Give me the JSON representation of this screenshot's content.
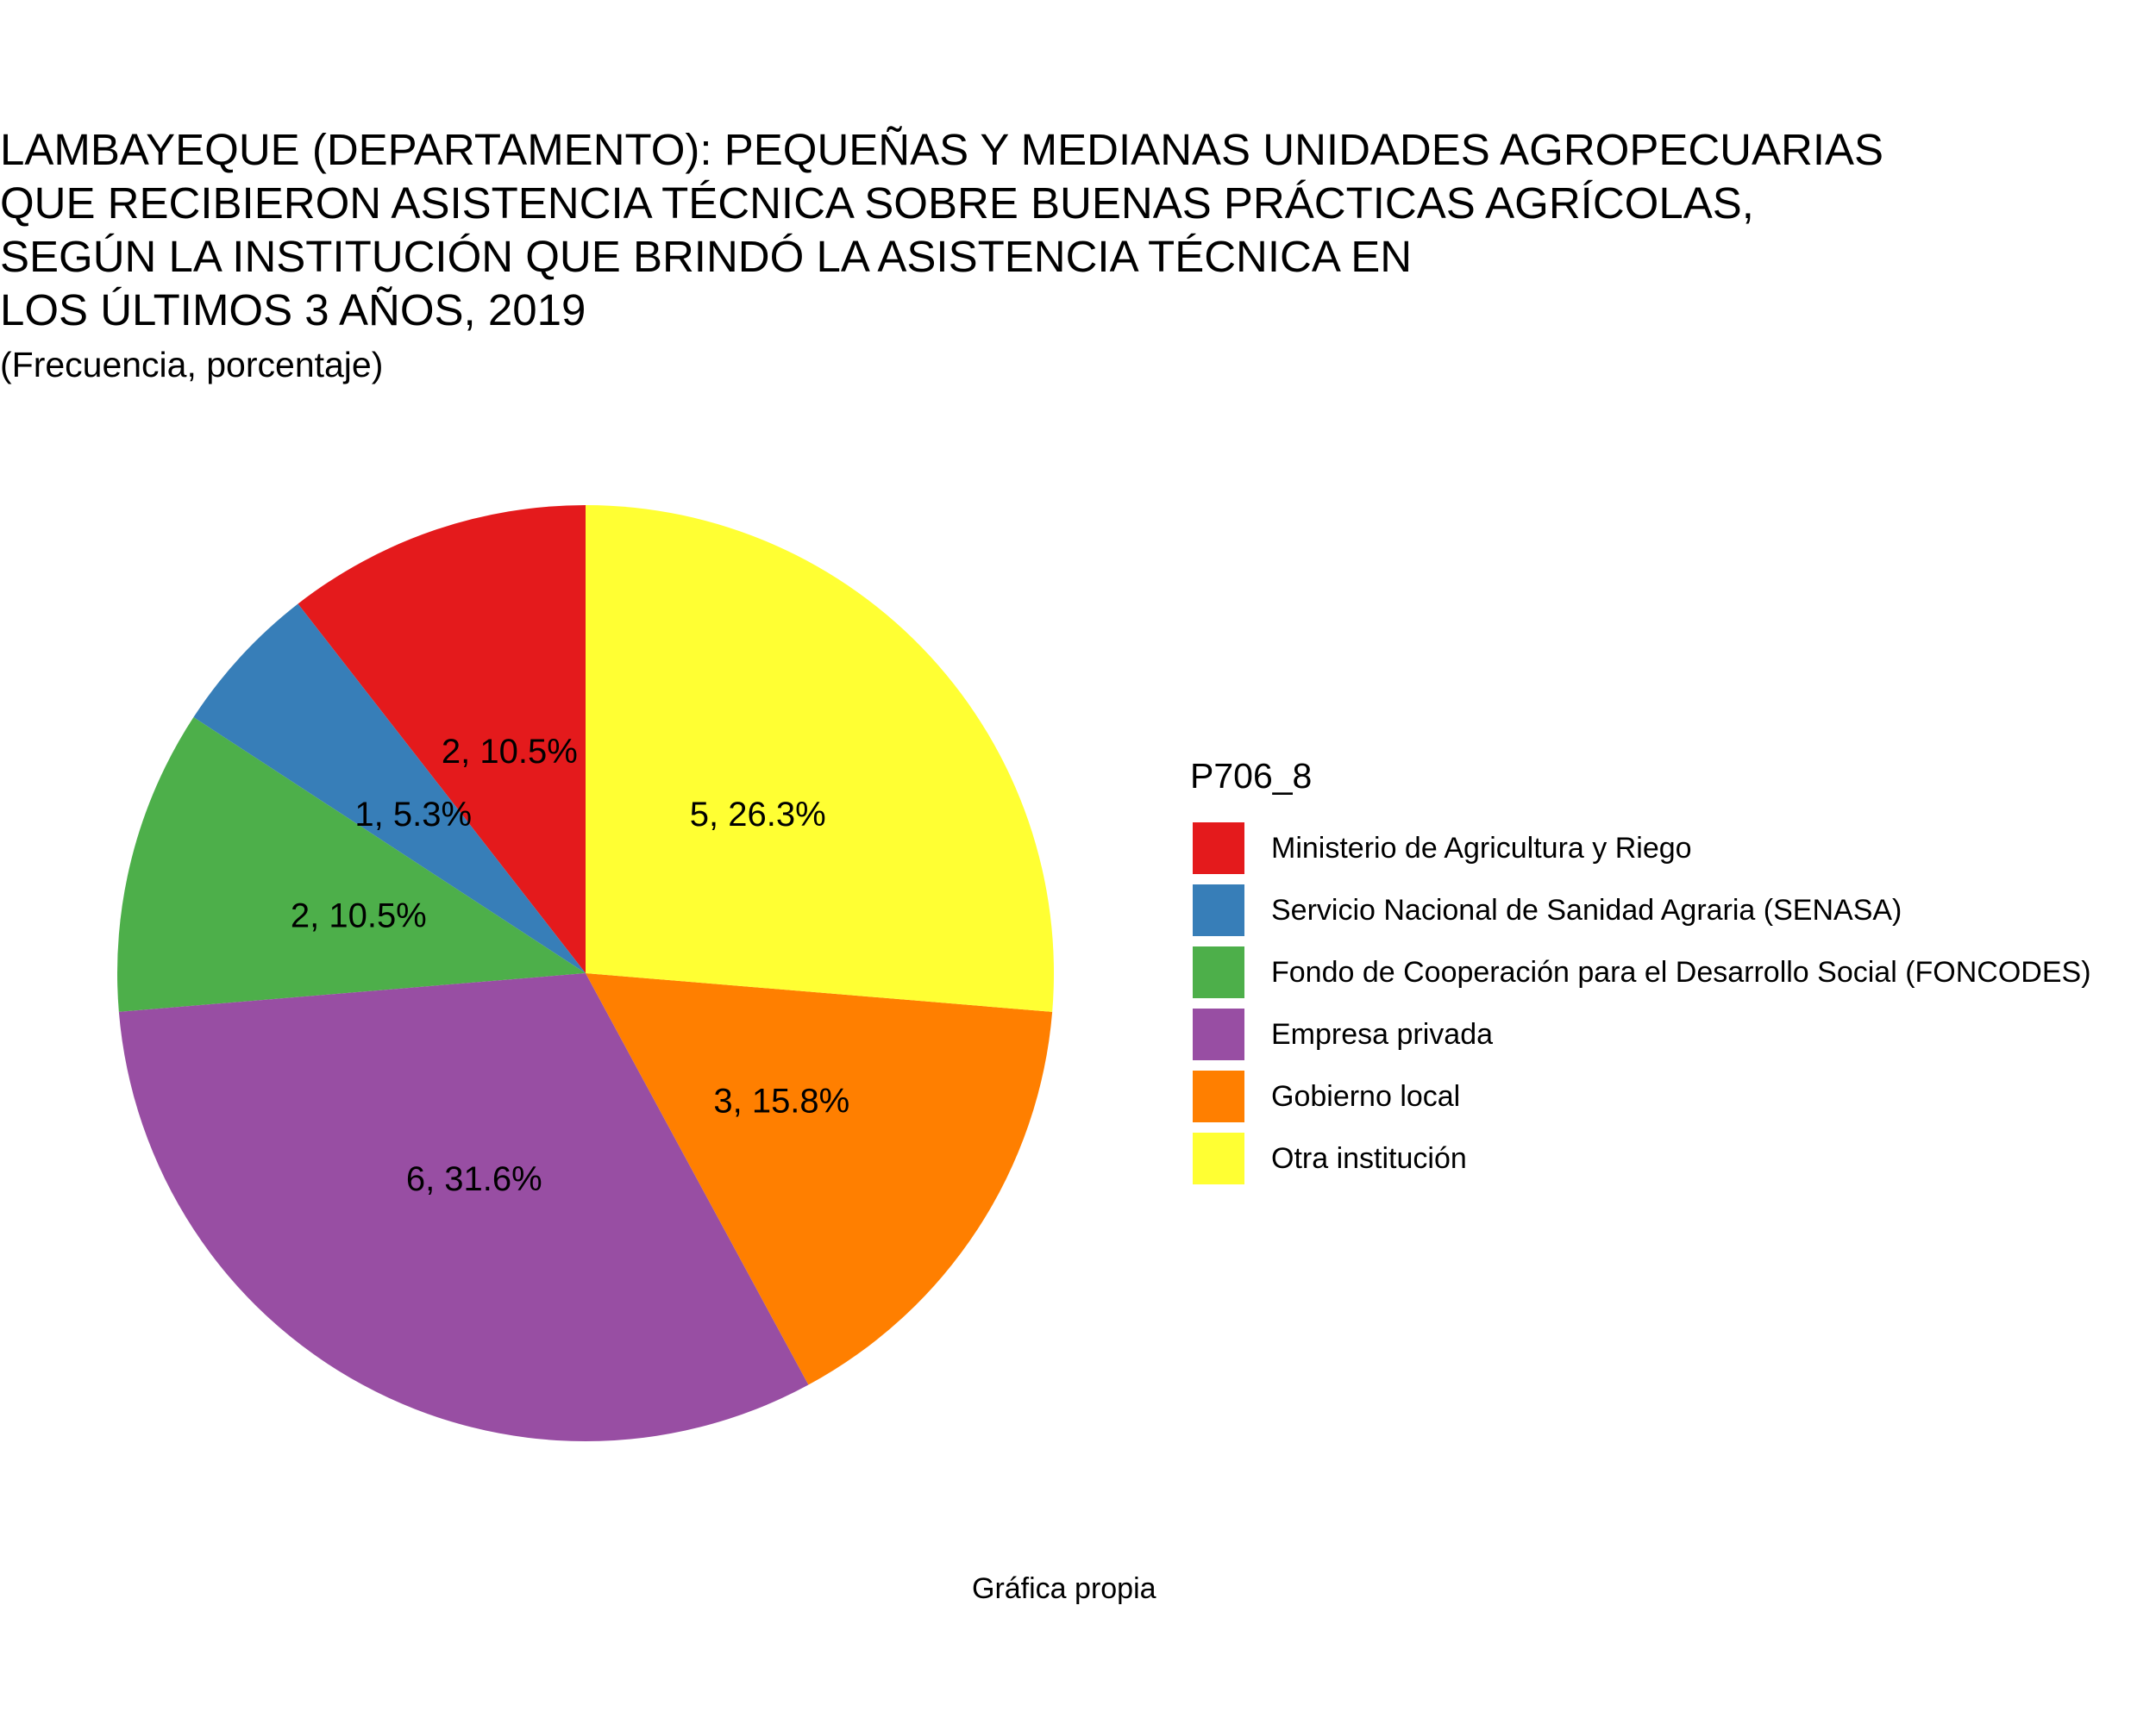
{
  "chart_data": {
    "type": "pie",
    "title": "LAMBAYEQUE (DEPARTAMENTO): PEQUEÑAS Y MEDIANAS UNIDADES AGROPECUARIAS\nQUE RECIBIERON ASISTENCIA TÉCNICA SOBRE BUENAS PRÁCTICAS AGRÍCOLAS,\nSEGÚN LA INSTITUCIÓN QUE BRINDÓ LA ASISTENCIA TÉCNICA EN\nLOS ÚLTIMOS 3 AÑOS, 2019",
    "subtitle": "(Frecuencia, porcentaje)",
    "caption": "Gráfica propia",
    "legend_title": "P706_8",
    "legend_position": "right",
    "categories": [
      "Ministerio de Agricultura y Riego",
      "Servicio Nacional de Sanidad Agraria (SENASA)",
      "Fondo de Cooperación para el Desarrollo Social (FONCODES)",
      "Empresa privada",
      "Gobierno local",
      "Otra institución"
    ],
    "values": [
      2,
      1,
      2,
      6,
      3,
      5
    ],
    "percentages": [
      10.5,
      5.3,
      10.5,
      31.6,
      15.8,
      26.3
    ],
    "data_labels": [
      "2, 10.5%",
      "1, 5.3%",
      "2, 10.5%",
      "6, 31.6%",
      "3, 15.8%",
      "5, 26.3%"
    ],
    "colors": [
      "#E41A1C",
      "#377EB8",
      "#4DAF4A",
      "#984EA3",
      "#FF7F00",
      "#FFFF33"
    ]
  }
}
